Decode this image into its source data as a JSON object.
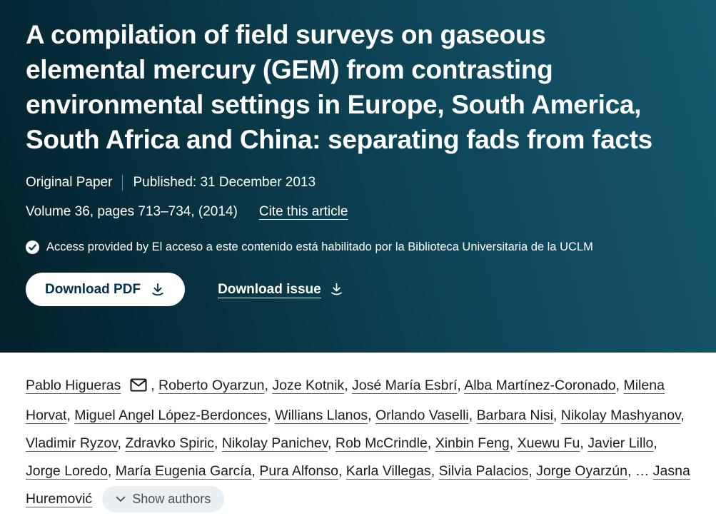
{
  "header": {
    "title": "A compilation of field surveys on gaseous elemental mercury (GEM) from contrasting environmental settings in Europe, South America, South Africa and China: separating fads from facts",
    "article_type": "Original Paper",
    "published_label": "Published: 31 December 2013",
    "volume_line": "Volume 36, pages 713–734, (2014)",
    "cite_link_label": "Cite this article",
    "access_note": "Access provided by El acceso a este contenido está habilitado por la Biblioteca Universitaria de la UCLM",
    "download_pdf_label": "Download PDF",
    "download_issue_label": "Download issue"
  },
  "authors": {
    "list": [
      "Pablo Higueras",
      "Roberto Oyarzun",
      "Joze Kotnik",
      "José María Esbrí",
      "Alba Martínez-Coronado",
      "Milena Horvat",
      "Miguel Angel López-Berdonces",
      "Willians Llanos",
      "Orlando Vaselli",
      "Barbara Nisi",
      "Nikolay Mashyanov",
      "Vladimir Ryzov",
      "Zdravko Spiric",
      "Nikolay Panichev",
      "Rob McCrindle",
      "Xinbin Feng",
      "Xuewu Fu",
      "Javier Lillo",
      "Jorge Loredo",
      "María Eugenia García",
      "Pura Alfonso",
      "Karla Villegas",
      "Silvia Palacios",
      "Jorge Oyarzún",
      "Jasna Huremović"
    ],
    "truncation_indicator": "…",
    "show_authors_label": "Show authors"
  },
  "icons": {
    "mail_icon": "envelope",
    "download_icon": "arrow-down-to-tray",
    "check_icon": "checkmark-circle",
    "chevron_down_icon": "chevron-down"
  },
  "colors": {
    "header_gradient_start": "#03202b",
    "header_gradient_mid": "#0d4355",
    "header_gradient_end": "#16586e",
    "header_text": "#ffffff",
    "pdf_button_bg": "#ffffff",
    "pdf_button_text": "#01324b",
    "author_text": "#1c1c1c",
    "show_authors_bg": "#e9eff4",
    "show_authors_text": "#4d4d4d"
  }
}
